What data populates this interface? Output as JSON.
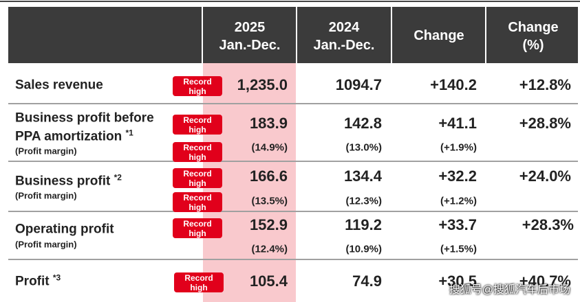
{
  "header": {
    "columns": [
      [
        "2025",
        "Jan.-Dec."
      ],
      [
        "2024",
        "Jan.-Dec."
      ],
      [
        "Change"
      ],
      [
        "Change",
        "(%)"
      ]
    ]
  },
  "badge": [
    "Record",
    "high"
  ],
  "rows": [
    {
      "label": [
        "Sales revenue"
      ],
      "values": [
        "1,235.0",
        "1094.7",
        "+140.2",
        "+12.8%"
      ]
    },
    {
      "label": [
        "Business profit before",
        "PPA amortization"
      ],
      "note": "*1",
      "sublabel": "(Profit margin)",
      "values": [
        "183.9",
        "142.8",
        "+41.1",
        "+28.8%"
      ],
      "margins": [
        "(14.9%)",
        "(13.0%)",
        "(+1.9%)"
      ]
    },
    {
      "label": [
        "Business profit"
      ],
      "note": "*2",
      "sublabel": "(Profit margin)",
      "values": [
        "166.6",
        "134.4",
        "+32.2",
        "+24.0%"
      ],
      "margins": [
        "(13.5%)",
        "(12.3%)",
        "(+1.2%)"
      ]
    },
    {
      "label": [
        "Operating profit"
      ],
      "sublabel": "(Profit margin)",
      "values": [
        "152.9",
        "119.2",
        "+33.7",
        "+28.3%"
      ],
      "margins": [
        "(12.4%)",
        "(10.9%)",
        "(+1.5%)"
      ]
    },
    {
      "label": [
        "Profit"
      ],
      "note": "*3",
      "values": [
        "105.4",
        "74.9",
        "+30.5",
        "+40.7%"
      ]
    }
  ],
  "watermark": "搜狐号@搜狐汽车后市场"
}
